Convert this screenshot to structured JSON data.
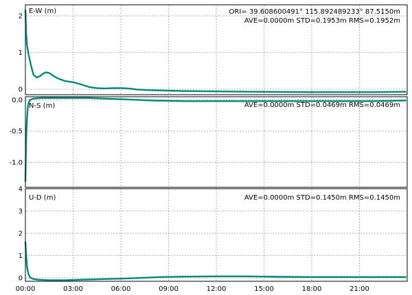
{
  "colors": {
    "series": "#00897b",
    "grid": "#9a9a9a",
    "frame": "#000000",
    "background": "#ffffff"
  },
  "chart_data": [
    {
      "type": "line",
      "panel": "E-W",
      "label": "E-W (m)",
      "header_line1": "ORI= 39.608600491°  115.892489233° 87.5150m",
      "header_line2": "AVE=0.0000m STD=0.1953m RMS=0.1952m",
      "ylim": [
        -0.15,
        2.3
      ],
      "yticks": [
        0,
        1,
        2
      ],
      "ytick_labels": [
        "0",
        "1",
        "2"
      ],
      "x": [
        0.0,
        0.05,
        0.1,
        0.2,
        0.35,
        0.5,
        0.7,
        0.9,
        1.1,
        1.3,
        1.5,
        1.7,
        2.0,
        2.5,
        3.0,
        3.5,
        4.0,
        4.5,
        5.0,
        5.5,
        6.0,
        6.5,
        7.0,
        8.0,
        10.0,
        14.0,
        18.0,
        22.0,
        23.9
      ],
      "y": [
        2.15,
        1.5,
        1.2,
        0.95,
        0.65,
        0.4,
        0.32,
        0.35,
        0.42,
        0.46,
        0.44,
        0.38,
        0.3,
        0.22,
        0.19,
        0.13,
        0.06,
        0.03,
        0.02,
        0.03,
        0.03,
        0.02,
        -0.01,
        -0.03,
        -0.05,
        -0.07,
        -0.08,
        -0.08,
        -0.07
      ]
    },
    {
      "type": "line",
      "panel": "N-S",
      "label": "N-S (m)",
      "header_line2": "AVE=0.0000m STD=0.0469m RMS=0.0469m",
      "ylim": [
        -1.4,
        0.05
      ],
      "yticks": [
        0.0,
        -0.5,
        -1.0
      ],
      "ytick_labels": [
        "0.0",
        "-0.5",
        "-1.0"
      ],
      "x": [
        0.0,
        0.05,
        0.1,
        0.15,
        0.2,
        0.3,
        0.5,
        1.0,
        2.0,
        3.0,
        4.0,
        5.0,
        6.0,
        7.0,
        8.0,
        10.0,
        14.0,
        18.0,
        22.0,
        23.9
      ],
      "y": [
        -1.3,
        -0.6,
        -0.3,
        -0.12,
        -0.05,
        0.0,
        0.02,
        0.03,
        0.03,
        0.03,
        0.03,
        0.02,
        0.01,
        0.0,
        -0.01,
        -0.02,
        -0.02,
        -0.02,
        -0.02,
        -0.01
      ]
    },
    {
      "type": "line",
      "panel": "U-D",
      "label": "U-D (m)",
      "header_line2": "AVE=0.0000m STD=0.1450m RMS=0.1450m",
      "ylim": [
        -0.15,
        4.0
      ],
      "yticks": [
        0,
        1,
        2,
        3,
        4
      ],
      "ytick_labels": [
        "0",
        "1",
        "2",
        "3",
        "4"
      ],
      "x": [
        0.0,
        0.05,
        0.1,
        0.2,
        0.3,
        0.5,
        0.8,
        1.5,
        2.5,
        3.5,
        4.5,
        5.5,
        6.5,
        7.5,
        8.5,
        10.0,
        12.0,
        14.0,
        15.0,
        16.0,
        18.0,
        20.0,
        22.0,
        23.9
      ],
      "y": [
        1.6,
        1.0,
        0.5,
        0.15,
        0.02,
        -0.05,
        -0.08,
        -0.1,
        -0.1,
        -0.08,
        -0.06,
        -0.04,
        -0.02,
        0.01,
        0.04,
        0.06,
        0.07,
        0.07,
        0.06,
        0.05,
        0.04,
        0.04,
        0.04,
        0.04
      ]
    }
  ],
  "x_axis": {
    "xlim": [
      0,
      24
    ],
    "ticks": [
      0,
      3,
      6,
      9,
      12,
      15,
      18,
      21
    ],
    "tick_labels": [
      "00:00",
      "03:00",
      "06:00",
      "09:00",
      "12:00",
      "15:00",
      "18:00",
      "21:00"
    ],
    "grid": true
  }
}
